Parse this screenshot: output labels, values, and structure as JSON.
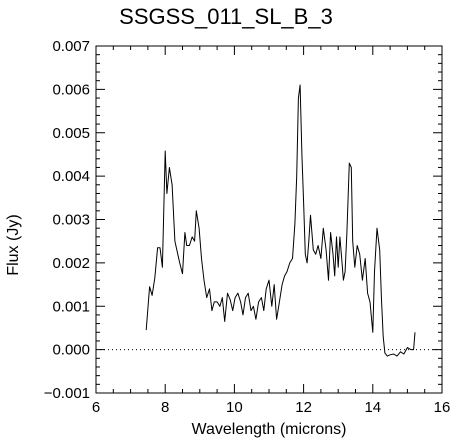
{
  "chart_data": {
    "type": "line",
    "title": "SSGSS_011_SL_B_3",
    "xlabel": "Wavelength (microns)",
    "ylabel": "Flux (Jy)",
    "xlim": [
      6,
      16
    ],
    "ylim": [
      -0.001,
      0.007
    ],
    "xticks": [
      6,
      8,
      10,
      12,
      14,
      16
    ],
    "xtick_labels": [
      "6",
      "8",
      "10",
      "12",
      "14",
      "16"
    ],
    "yticks": [
      -0.001,
      0.0,
      0.001,
      0.002,
      0.003,
      0.004,
      0.005,
      0.006,
      0.007
    ],
    "ytick_labels": [
      "−0.001",
      "0.000",
      "0.001",
      "0.002",
      "0.003",
      "0.004",
      "0.005",
      "0.006",
      "0.007"
    ],
    "reference_line": {
      "y": 0.0,
      "style": "dotted"
    },
    "series": [
      {
        "color": "#000000",
        "x": [
          7.45,
          7.55,
          7.62,
          7.7,
          7.78,
          7.85,
          7.92,
          8.0,
          8.05,
          8.12,
          8.2,
          8.28,
          8.35,
          8.42,
          8.5,
          8.57,
          8.62,
          8.7,
          8.78,
          8.85,
          8.9,
          8.98,
          9.05,
          9.12,
          9.2,
          9.28,
          9.35,
          9.42,
          9.5,
          9.58,
          9.65,
          9.72,
          9.8,
          9.88,
          9.95,
          10.02,
          10.1,
          10.18,
          10.25,
          10.32,
          10.4,
          10.48,
          10.55,
          10.62,
          10.7,
          10.78,
          10.85,
          10.92,
          11.0,
          11.08,
          11.15,
          11.22,
          11.3,
          11.38,
          11.45,
          11.52,
          11.6,
          11.68,
          11.75,
          11.8,
          11.85,
          11.9,
          11.95,
          12.0,
          12.05,
          12.1,
          12.15,
          12.2,
          12.28,
          12.35,
          12.42,
          12.5,
          12.57,
          12.65,
          12.72,
          12.78,
          12.85,
          12.9,
          12.95,
          13.0,
          13.05,
          13.1,
          13.15,
          13.2,
          13.25,
          13.32,
          13.38,
          13.42,
          13.48,
          13.55,
          13.62,
          13.7,
          13.78,
          13.85,
          13.92,
          14.0,
          14.05,
          14.12,
          14.2,
          14.25,
          14.3,
          14.35,
          14.42,
          14.5,
          14.6,
          14.7,
          14.8,
          14.9,
          15.0,
          15.1,
          15.18,
          15.22
        ],
        "y": [
          0.00045,
          0.00145,
          0.00125,
          0.00165,
          0.00235,
          0.00235,
          0.0019,
          0.00458,
          0.0036,
          0.0042,
          0.0038,
          0.0025,
          0.00225,
          0.002,
          0.00175,
          0.0027,
          0.0024,
          0.0024,
          0.0026,
          0.0025,
          0.0032,
          0.0028,
          0.0021,
          0.0016,
          0.0012,
          0.0014,
          0.0009,
          0.0011,
          0.0011,
          0.001,
          0.0012,
          0.00065,
          0.0013,
          0.00115,
          0.0009,
          0.0012,
          0.0013,
          0.0011,
          0.0008,
          0.0012,
          0.0013,
          0.0009,
          0.001,
          0.0007,
          0.0011,
          0.0012,
          0.0009,
          0.0014,
          0.0016,
          0.001,
          0.0015,
          0.0007,
          0.0011,
          0.0015,
          0.0017,
          0.0018,
          0.002,
          0.0021,
          0.0029,
          0.004,
          0.0058,
          0.0061,
          0.0045,
          0.0034,
          0.0022,
          0.002,
          0.0025,
          0.0031,
          0.0023,
          0.0022,
          0.0024,
          0.0021,
          0.0028,
          0.0023,
          0.0016,
          0.0027,
          0.0022,
          0.0017,
          0.0026,
          0.0019,
          0.0026,
          0.0021,
          0.0016,
          0.0018,
          0.0027,
          0.0043,
          0.0042,
          0.0025,
          0.0019,
          0.0024,
          0.0022,
          0.0016,
          0.0021,
          0.0013,
          0.0011,
          0.0004,
          0.0018,
          0.0028,
          0.0023,
          0.0012,
          0.0003,
          -8e-05,
          -0.00015,
          -0.00012,
          -0.0001,
          -0.00015,
          -5e-05,
          -0.0001,
          5e-05,
          0.0,
          0.0,
          0.0004
        ]
      }
    ]
  }
}
